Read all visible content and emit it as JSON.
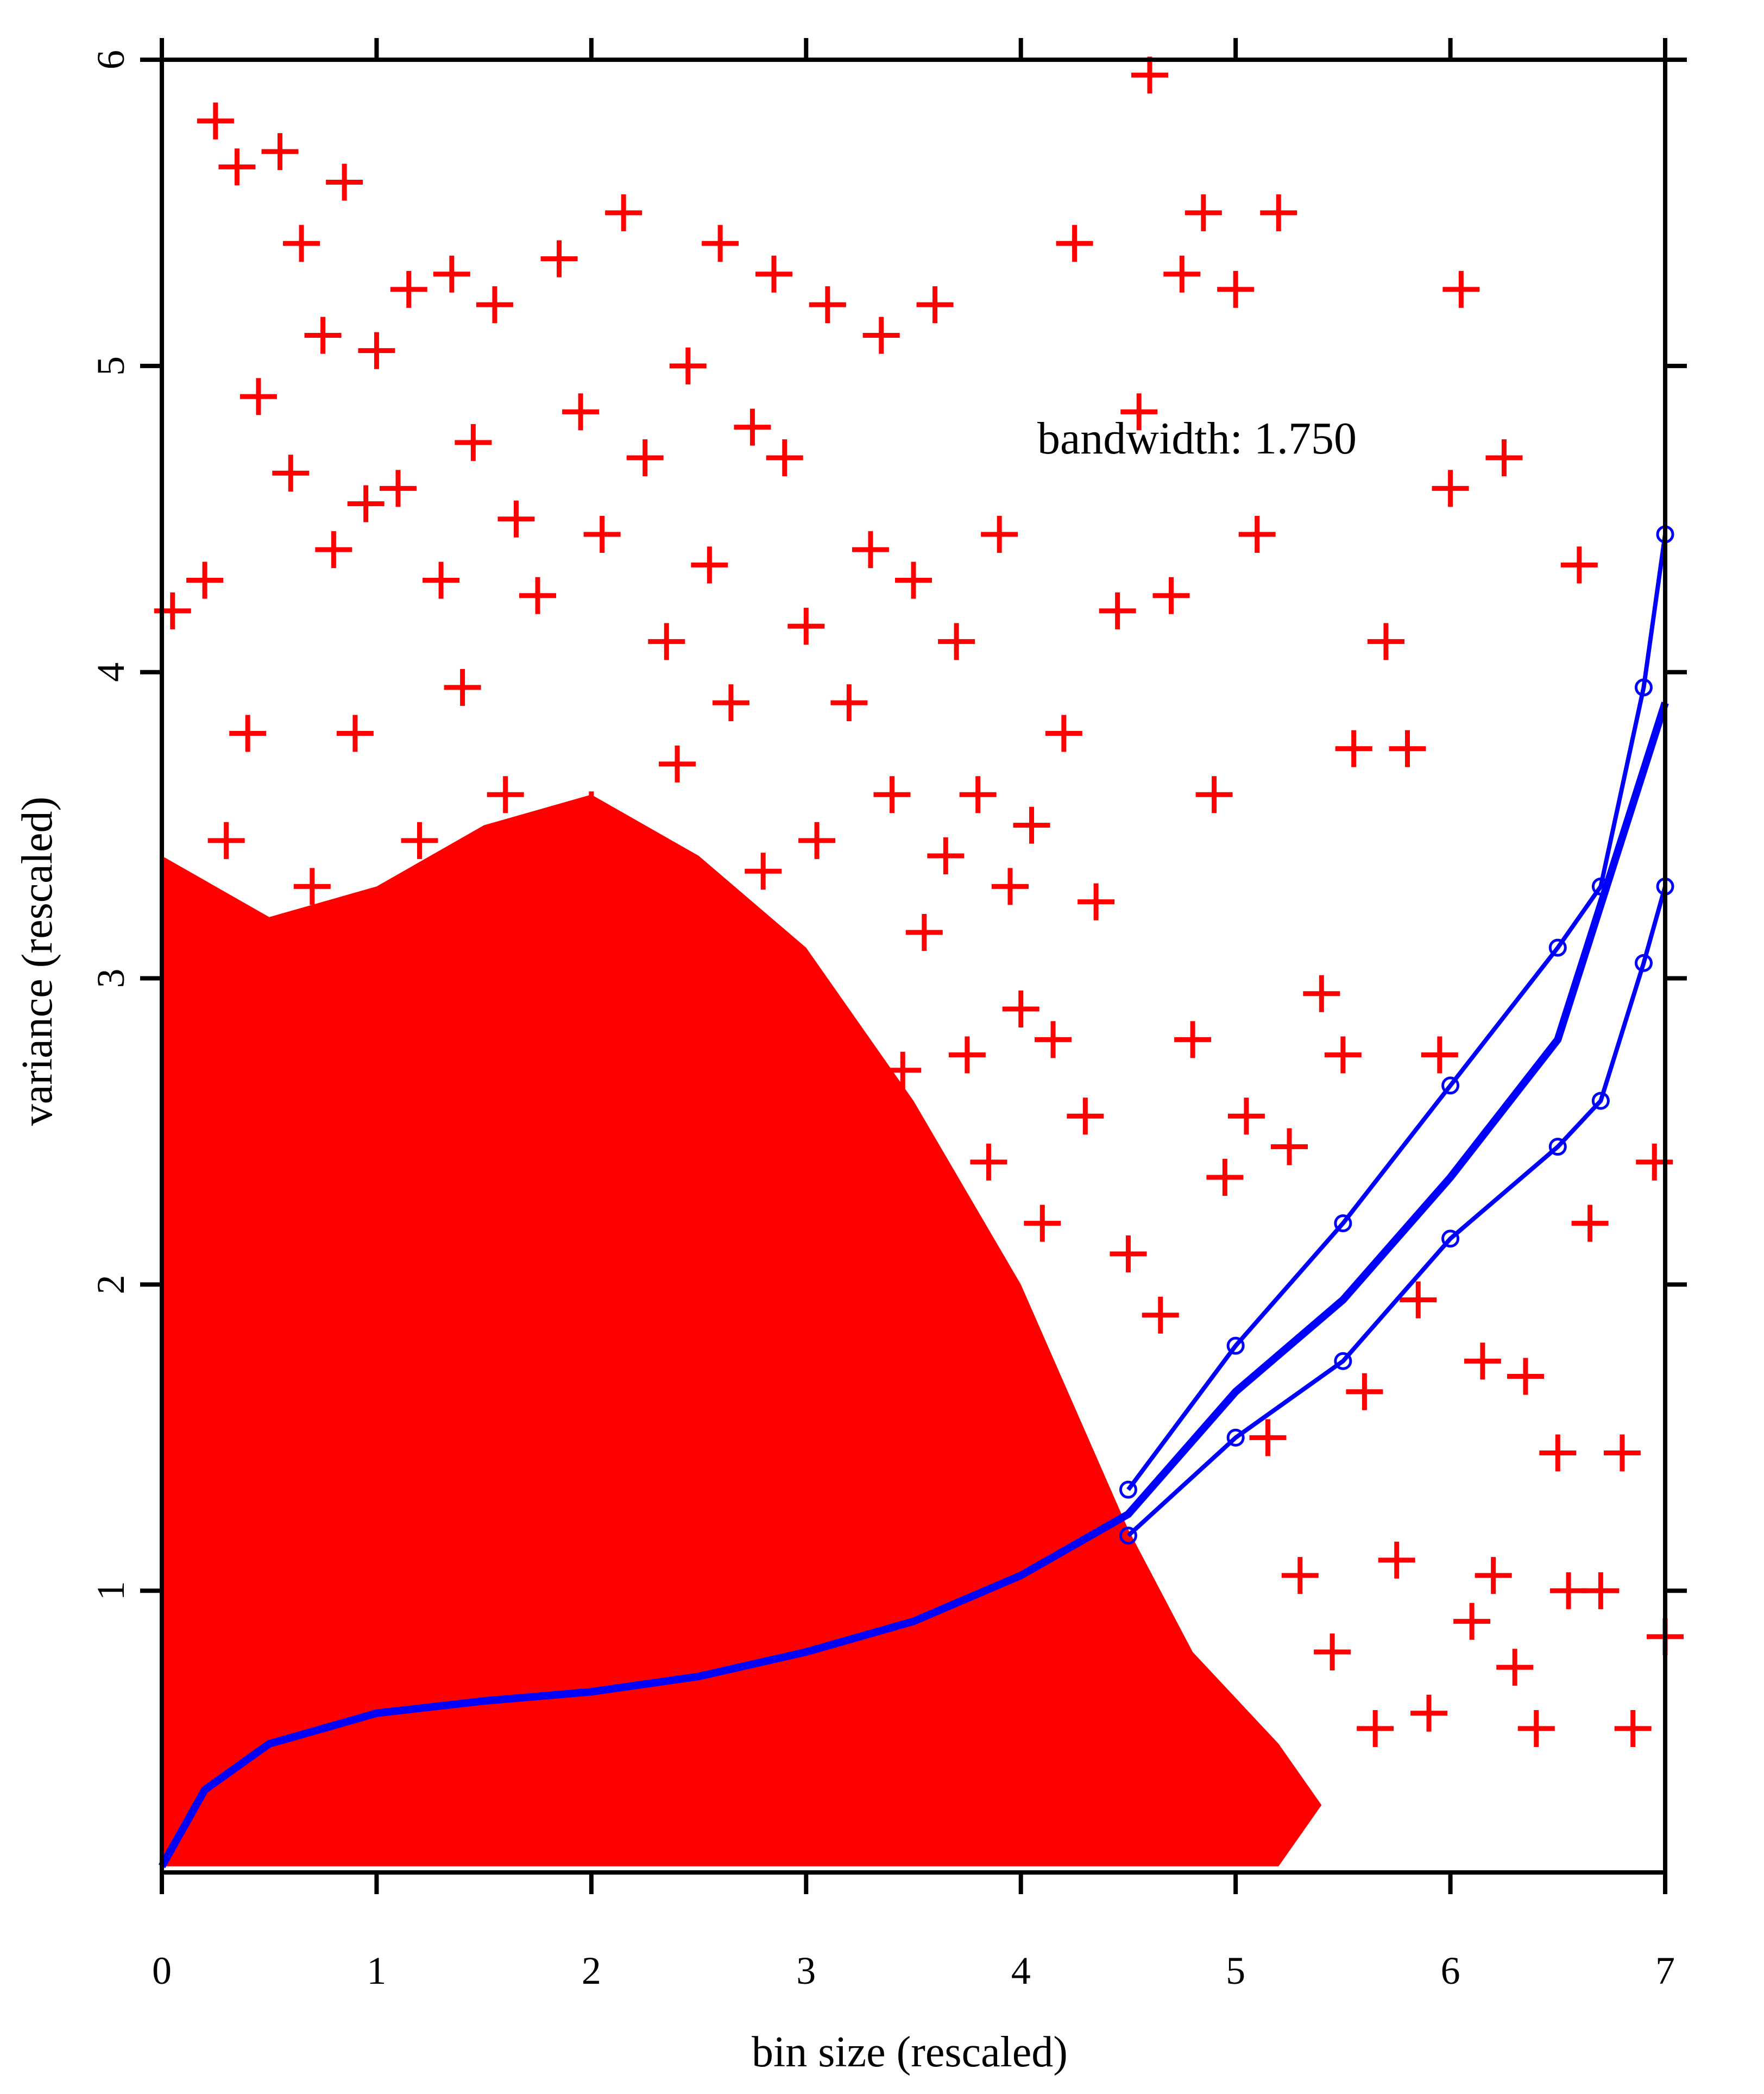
{
  "chart_data": {
    "type": "scatter",
    "title": "",
    "xlabel": "bin size (rescaled)",
    "ylabel": "variance (rescaled)",
    "xlim": [
      0,
      7
    ],
    "ylim": [
      0.08,
      6
    ],
    "x_ticks": [
      0,
      1,
      2,
      3,
      4,
      5,
      6,
      7
    ],
    "x_tick_labels": [
      "0",
      "1",
      "2",
      "3",
      "4",
      "5",
      "6",
      "7"
    ],
    "y_ticks": [
      1,
      2,
      3,
      4,
      5,
      6
    ],
    "y_tick_labels": [
      "1",
      "2",
      "3",
      "4",
      "5",
      "6"
    ],
    "grid": false,
    "legend": "none",
    "annotation": "bandwidth: 1.750",
    "colors": {
      "points": "#ff0000",
      "fit": "#0000ff"
    },
    "series": [
      {
        "marker": "plus",
        "color": "#ff0000",
        "points": [
          [
            0.05,
            4.2
          ],
          [
            0.12,
            2.3
          ],
          [
            0.2,
            4.3
          ],
          [
            0.25,
            5.8
          ],
          [
            0.28,
            2.95
          ],
          [
            0.3,
            3.45
          ],
          [
            0.35,
            5.65
          ],
          [
            0.4,
            3.8
          ],
          [
            0.45,
            4.9
          ],
          [
            0.5,
            2.7
          ],
          [
            0.55,
            5.7
          ],
          [
            0.6,
            4.65
          ],
          [
            0.65,
            5.4
          ],
          [
            0.7,
            3.3
          ],
          [
            0.75,
            5.1
          ],
          [
            0.8,
            4.4
          ],
          [
            0.85,
            5.6
          ],
          [
            0.9,
            3.8
          ],
          [
            0.95,
            4.55
          ],
          [
            1.0,
            5.05
          ],
          [
            1.05,
            3.15
          ],
          [
            1.1,
            4.6
          ],
          [
            1.15,
            5.25
          ],
          [
            1.2,
            3.45
          ],
          [
            1.3,
            4.3
          ],
          [
            1.35,
            5.3
          ],
          [
            1.4,
            3.95
          ],
          [
            1.45,
            4.75
          ],
          [
            1.5,
            2.9
          ],
          [
            1.55,
            5.2
          ],
          [
            1.6,
            3.6
          ],
          [
            1.65,
            4.5
          ],
          [
            1.7,
            3.1
          ],
          [
            1.75,
            4.25
          ],
          [
            1.8,
            2.75
          ],
          [
            1.85,
            5.35
          ],
          [
            1.9,
            3.3
          ],
          [
            1.95,
            4.85
          ],
          [
            2.0,
            3.55
          ],
          [
            2.05,
            4.45
          ],
          [
            2.1,
            2.6
          ],
          [
            2.15,
            5.5
          ],
          [
            2.2,
            3.4
          ],
          [
            2.25,
            4.7
          ],
          [
            2.3,
            2.85
          ],
          [
            2.35,
            4.1
          ],
          [
            2.4,
            3.7
          ],
          [
            2.45,
            5.0
          ],
          [
            2.5,
            3.25
          ],
          [
            2.55,
            4.35
          ],
          [
            2.6,
            5.4
          ],
          [
            2.65,
            3.9
          ],
          [
            2.7,
            2.55
          ],
          [
            2.75,
            4.8
          ],
          [
            2.8,
            3.35
          ],
          [
            2.85,
            5.3
          ],
          [
            2.9,
            4.7
          ],
          [
            2.95,
            3.0
          ],
          [
            3.0,
            4.15
          ],
          [
            3.05,
            3.45
          ],
          [
            3.1,
            5.2
          ],
          [
            3.2,
            3.9
          ],
          [
            3.25,
            2.45
          ],
          [
            3.3,
            4.4
          ],
          [
            3.35,
            5.1
          ],
          [
            3.4,
            3.6
          ],
          [
            3.45,
            2.7
          ],
          [
            3.5,
            4.3
          ],
          [
            3.55,
            3.15
          ],
          [
            3.6,
            5.2
          ],
          [
            3.65,
            3.4
          ],
          [
            3.7,
            4.1
          ],
          [
            3.75,
            2.75
          ],
          [
            3.8,
            3.6
          ],
          [
            3.85,
            2.4
          ],
          [
            3.9,
            4.45
          ],
          [
            3.95,
            3.3
          ],
          [
            4.0,
            2.9
          ],
          [
            4.05,
            3.5
          ],
          [
            4.1,
            2.2
          ],
          [
            4.15,
            2.8
          ],
          [
            4.2,
            3.8
          ],
          [
            4.25,
            5.4
          ],
          [
            4.3,
            2.55
          ],
          [
            4.35,
            3.25
          ],
          [
            4.45,
            4.2
          ],
          [
            4.5,
            2.1
          ],
          [
            4.55,
            4.85
          ],
          [
            4.6,
            5.95
          ],
          [
            4.65,
            1.9
          ],
          [
            4.7,
            4.25
          ],
          [
            4.75,
            5.3
          ],
          [
            4.8,
            2.8
          ],
          [
            4.85,
            5.5
          ],
          [
            4.9,
            3.6
          ],
          [
            4.95,
            2.35
          ],
          [
            5.0,
            5.25
          ],
          [
            5.05,
            2.55
          ],
          [
            5.1,
            4.45
          ],
          [
            5.15,
            1.5
          ],
          [
            5.2,
            5.5
          ],
          [
            5.25,
            2.45
          ],
          [
            5.3,
            1.05
          ],
          [
            5.4,
            2.95
          ],
          [
            5.45,
            0.8
          ],
          [
            5.5,
            2.75
          ],
          [
            5.55,
            3.75
          ],
          [
            5.6,
            1.65
          ],
          [
            5.65,
            0.55
          ],
          [
            5.7,
            4.1
          ],
          [
            5.75,
            1.1
          ],
          [
            5.8,
            3.75
          ],
          [
            5.85,
            1.95
          ],
          [
            5.9,
            0.6
          ],
          [
            5.95,
            2.75
          ],
          [
            6.0,
            4.6
          ],
          [
            6.05,
            5.25
          ],
          [
            6.1,
            0.9
          ],
          [
            6.15,
            1.75
          ],
          [
            6.2,
            1.05
          ],
          [
            6.25,
            4.7
          ],
          [
            6.3,
            0.75
          ],
          [
            6.35,
            1.7
          ],
          [
            6.4,
            0.55
          ],
          [
            6.5,
            1.45
          ],
          [
            6.55,
            1.0
          ],
          [
            6.6,
            4.35
          ],
          [
            6.65,
            2.2
          ],
          [
            6.7,
            1.0
          ],
          [
            6.8,
            1.45
          ],
          [
            6.85,
            0.55
          ],
          [
            6.95,
            2.4
          ],
          [
            7.0,
            0.85
          ]
        ]
      },
      {
        "name": "",
        "marker": "circle",
        "color": "#0000ff",
        "description_of_curves": "local regression fit with upper and lower confidence bands",
        "fit": [
          [
            0.0,
            0.1
          ],
          [
            0.2,
            0.35
          ],
          [
            0.5,
            0.5
          ],
          [
            1.0,
            0.6
          ],
          [
            1.5,
            0.64
          ],
          [
            2.0,
            0.67
          ],
          [
            2.5,
            0.72
          ],
          [
            3.0,
            0.8
          ],
          [
            3.5,
            0.9
          ],
          [
            4.0,
            1.05
          ],
          [
            4.5,
            1.25
          ],
          [
            5.0,
            1.65
          ],
          [
            5.5,
            1.95
          ],
          [
            6.0,
            2.35
          ],
          [
            6.5,
            2.8
          ],
          [
            7.0,
            3.9
          ]
        ],
        "upper": [
          [
            4.5,
            1.33
          ],
          [
            5.0,
            1.8
          ],
          [
            5.5,
            2.2
          ],
          [
            6.0,
            2.65
          ],
          [
            6.5,
            3.1
          ],
          [
            6.7,
            3.3
          ],
          [
            6.9,
            3.95
          ],
          [
            7.0,
            4.45
          ]
        ],
        "lower": [
          [
            4.5,
            1.18
          ],
          [
            5.0,
            1.5
          ],
          [
            5.5,
            1.75
          ],
          [
            6.0,
            2.15
          ],
          [
            6.5,
            2.45
          ],
          [
            6.7,
            2.6
          ],
          [
            6.9,
            3.05
          ],
          [
            7.0,
            3.3
          ]
        ]
      }
    ]
  }
}
